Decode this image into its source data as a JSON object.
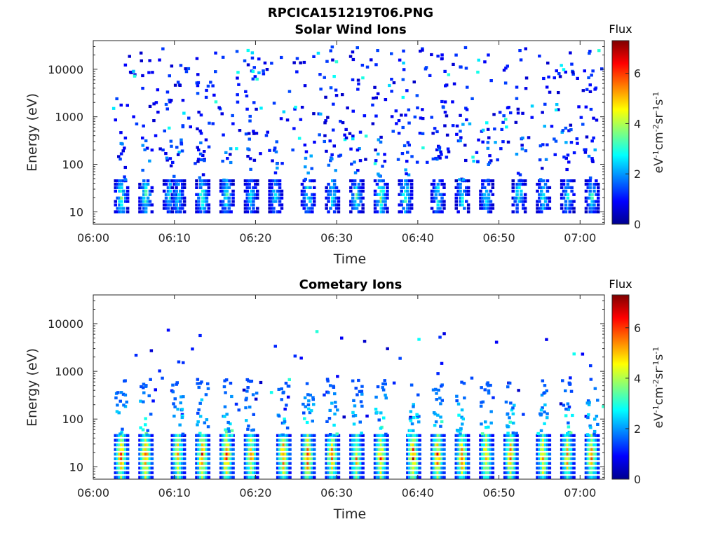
{
  "figure": {
    "title": "RPCICA151219T06.PNG"
  },
  "chart_data": [
    {
      "type": "heatmap",
      "title": "Solar Wind Ions",
      "xlabel": "Time",
      "ylabel": "Energy (eV)",
      "xlim": [
        "06:00",
        "07:03"
      ],
      "ylim": [
        5.5,
        40000
      ],
      "yscale": "log",
      "xticks": [
        "06:00",
        "06:10",
        "06:20",
        "06:30",
        "06:40",
        "06:50",
        "07:00"
      ],
      "yticks": [
        "10",
        "100",
        "1000",
        "10000"
      ],
      "grid": false,
      "colorbar": {
        "title": "Flux",
        "label": "eV-1cm-2sr-1s-1",
        "range": [
          0,
          7.3
        ],
        "ticks": [
          "0",
          "2",
          "4",
          "6"
        ],
        "colormap": "jet"
      },
      "bursts": [
        {
          "t": "06:03",
          "flux": 3.6
        },
        {
          "t": "06:06",
          "flux": 3.4
        },
        {
          "t": "06:09",
          "flux": 2.9
        },
        {
          "t": "06:10",
          "flux": 3.0
        },
        {
          "t": "06:13",
          "flux": 3.5
        },
        {
          "t": "06:16",
          "flux": 3.3
        },
        {
          "t": "06:19",
          "flux": 2.8
        },
        {
          "t": "06:22",
          "flux": 3.0
        },
        {
          "t": "06:26",
          "flux": 3.4
        },
        {
          "t": "06:29",
          "flux": 3.2
        },
        {
          "t": "06:32",
          "flux": 3.3
        },
        {
          "t": "06:35",
          "flux": 3.8
        },
        {
          "t": "06:38",
          "flux": 3.5
        },
        {
          "t": "06:42",
          "flux": 3.1
        },
        {
          "t": "06:45",
          "flux": 3.0
        },
        {
          "t": "06:48",
          "flux": 2.9
        },
        {
          "t": "06:52",
          "flux": 3.2
        },
        {
          "t": "06:55",
          "flux": 3.1
        },
        {
          "t": "06:58",
          "flux": 3.0
        },
        {
          "t": "07:01",
          "flux": 3.0
        }
      ],
      "band_energy_ev": [
        10,
        45
      ],
      "scatter_energy_ev": [
        100,
        30000
      ],
      "scatter_flux": [
        0.5,
        1.5
      ]
    },
    {
      "type": "heatmap",
      "title": "Cometary Ions",
      "xlabel": "Time",
      "ylabel": "Energy (eV)",
      "xlim": [
        "06:00",
        "07:03"
      ],
      "ylim": [
        5.5,
        40000
      ],
      "yscale": "log",
      "xticks": [
        "06:00",
        "06:10",
        "06:20",
        "06:30",
        "06:40",
        "06:50",
        "07:00"
      ],
      "yticks": [
        "10",
        "100",
        "1000",
        "10000"
      ],
      "grid": false,
      "colorbar": {
        "title": "Flux",
        "label": "eV-1cm-2sr-1s-1",
        "range": [
          0,
          7.3
        ],
        "ticks": [
          "0",
          "2",
          "4",
          "6"
        ],
        "colormap": "jet"
      },
      "bursts": [
        {
          "t": "06:03",
          "flux": 6.0
        },
        {
          "t": "06:06",
          "flux": 6.3
        },
        {
          "t": "06:10",
          "flux": 5.6
        },
        {
          "t": "06:13",
          "flux": 6.2
        },
        {
          "t": "06:16",
          "flux": 6.3
        },
        {
          "t": "06:19",
          "flux": 5.8
        },
        {
          "t": "06:23",
          "flux": 6.1
        },
        {
          "t": "06:26",
          "flux": 6.2
        },
        {
          "t": "06:29",
          "flux": 5.9
        },
        {
          "t": "06:32",
          "flux": 5.5
        },
        {
          "t": "06:35",
          "flux": 6.0
        },
        {
          "t": "06:39",
          "flux": 6.4
        },
        {
          "t": "06:42",
          "flux": 6.2
        },
        {
          "t": "06:45",
          "flux": 6.0
        },
        {
          "t": "06:48",
          "flux": 5.8
        },
        {
          "t": "06:51",
          "flux": 5.9
        },
        {
          "t": "06:55",
          "flux": 5.7
        },
        {
          "t": "06:58",
          "flux": 5.5
        },
        {
          "t": "07:01",
          "flux": 5.8
        }
      ],
      "band_energy_ev": [
        6,
        45
      ],
      "plume_energy_ev": [
        45,
        700
      ],
      "scatter_energy_ev": [
        100,
        8000
      ],
      "scatter_flux": [
        0.5,
        1.5
      ]
    }
  ]
}
